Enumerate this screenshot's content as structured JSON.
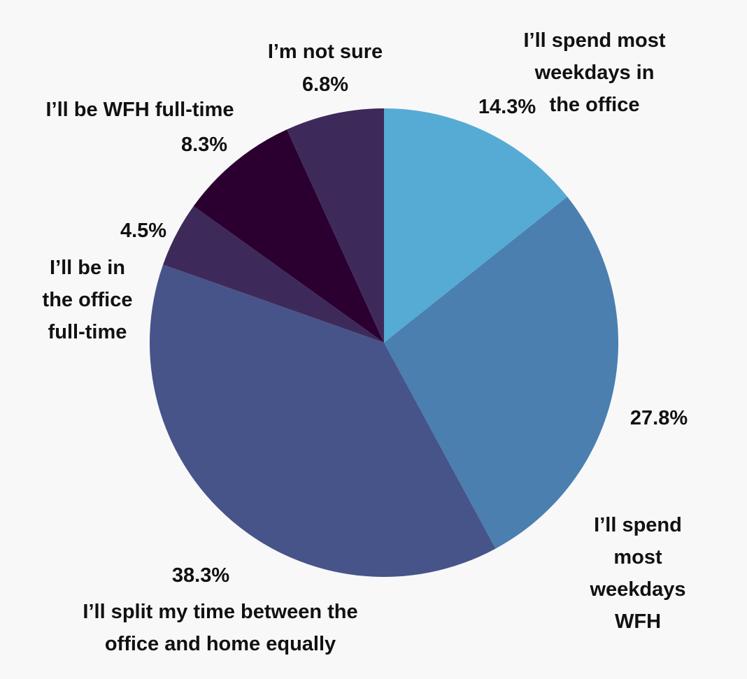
{
  "chart_data": {
    "type": "pie",
    "categories": [
      "I’ll spend most\nweekdays in the office",
      "I’ll spend most\nweekdays WFH",
      "I’ll split my time between the\noffice and home equally",
      "I’ll be in\nthe office\nfull-time",
      "I’ll be WFH full-time",
      "I’m not sure"
    ],
    "values": [
      14.3,
      27.8,
      38.3,
      4.5,
      8.3,
      6.8
    ],
    "value_labels": [
      "14.3%",
      "27.8%",
      "38.3%",
      "4.5%",
      "8.3%",
      "6.8%"
    ],
    "colors": [
      "#55abd3",
      "#4a7fb0",
      "#46548a",
      "#3e2a5a",
      "#2b0030",
      "#3e2a5a"
    ]
  }
}
